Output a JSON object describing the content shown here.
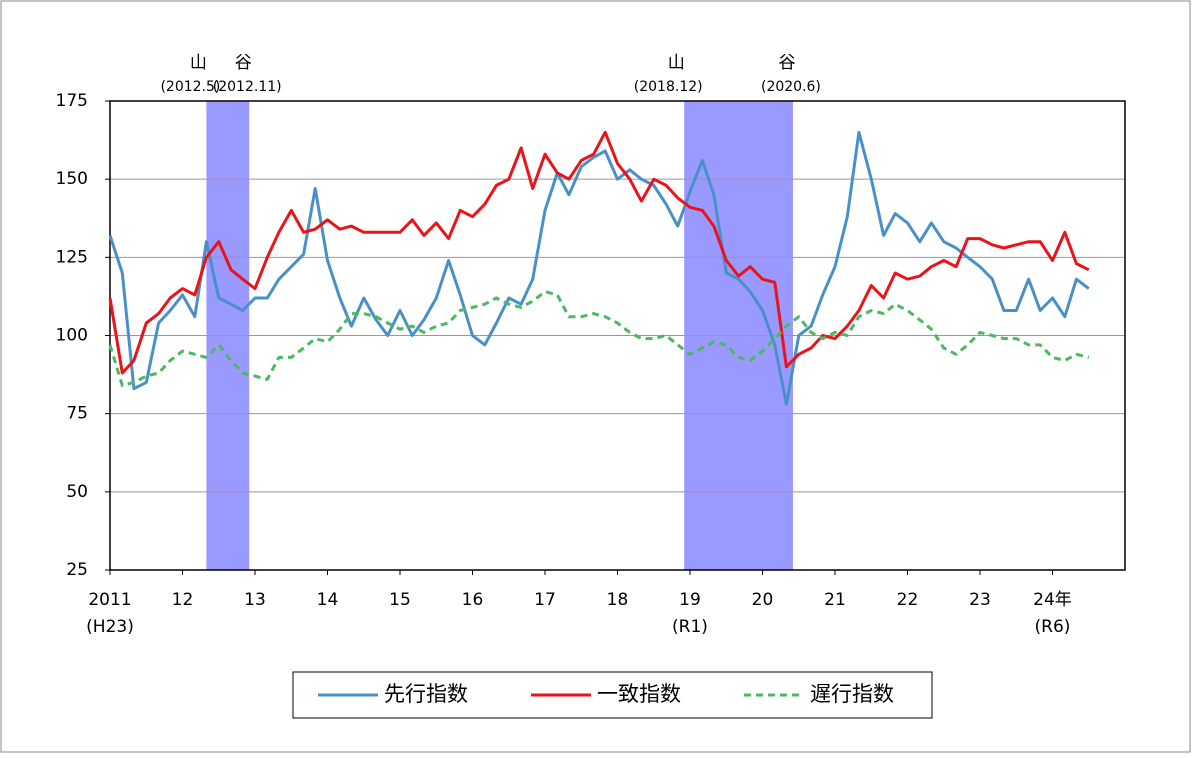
{
  "chart_data": {
    "type": "line",
    "x": [
      2011.0,
      2011.17,
      2011.33,
      2011.5,
      2011.67,
      2011.83,
      2012.0,
      2012.17,
      2012.33,
      2012.5,
      2012.67,
      2012.83,
      2013.0,
      2013.17,
      2013.33,
      2013.5,
      2013.67,
      2013.83,
      2014.0,
      2014.17,
      2014.33,
      2014.5,
      2014.67,
      2014.83,
      2015.0,
      2015.17,
      2015.33,
      2015.5,
      2015.67,
      2015.83,
      2016.0,
      2016.17,
      2016.33,
      2016.5,
      2016.67,
      2016.83,
      2017.0,
      2017.17,
      2017.33,
      2017.5,
      2017.67,
      2017.83,
      2018.0,
      2018.17,
      2018.33,
      2018.5,
      2018.67,
      2018.83,
      2019.0,
      2019.17,
      2019.33,
      2019.5,
      2019.67,
      2019.83,
      2020.0,
      2020.17,
      2020.33,
      2020.5,
      2020.67,
      2020.83,
      2021.0,
      2021.17,
      2021.33,
      2021.5,
      2021.67,
      2021.83,
      2022.0,
      2022.17,
      2022.33,
      2022.5,
      2022.67,
      2022.83,
      2023.0,
      2023.17,
      2023.33,
      2023.5,
      2023.67,
      2023.83,
      2024.0,
      2024.17,
      2024.33,
      2024.5
    ],
    "series": [
      {
        "name": "先行指数",
        "color": "#4a90c8",
        "dash": false,
        "values": [
          132,
          120,
          83,
          85,
          104,
          108,
          113,
          106,
          130,
          112,
          110,
          108,
          112,
          112,
          118,
          122,
          126,
          147,
          124,
          112,
          103,
          112,
          105,
          100,
          108,
          100,
          105,
          112,
          124,
          113,
          100,
          97,
          104,
          112,
          110,
          118,
          140,
          152,
          145,
          154,
          157,
          159,
          150,
          153,
          150,
          148,
          142,
          135,
          146,
          156,
          145,
          120,
          118,
          114,
          108,
          97,
          78,
          100,
          103,
          113,
          122,
          138,
          165,
          150,
          132,
          139,
          136,
          130,
          136,
          130,
          128,
          125,
          122,
          118,
          108,
          108,
          118,
          108,
          112,
          106,
          118,
          115
        ]
      },
      {
        "name": "一致指数",
        "color": "#e8141a",
        "dash": false,
        "values": [
          112,
          88,
          92,
          104,
          107,
          112,
          115,
          113,
          125,
          130,
          121,
          118,
          115,
          125,
          133,
          140,
          133,
          134,
          137,
          134,
          135,
          133,
          133,
          133,
          133,
          137,
          132,
          136,
          131,
          140,
          138,
          142,
          148,
          150,
          160,
          147,
          158,
          152,
          150,
          156,
          158,
          165,
          155,
          150,
          143,
          150,
          148,
          144,
          141,
          140,
          135,
          124,
          119,
          122,
          118,
          117,
          90,
          94,
          96,
          100,
          99,
          103,
          108,
          116,
          112,
          120,
          118,
          119,
          122,
          124,
          122,
          131,
          131,
          129,
          128,
          129,
          130,
          130,
          124,
          133,
          123,
          121
        ]
      },
      {
        "name": "遅行指数",
        "color": "#4cb860",
        "dash": true,
        "values": [
          97,
          84,
          85,
          87,
          88,
          92,
          95,
          94,
          93,
          97,
          92,
          88,
          87,
          86,
          93,
          93,
          96,
          99,
          98,
          102,
          107,
          107,
          106,
          104,
          102,
          103,
          101,
          103,
          104,
          108,
          109,
          110,
          112,
          110,
          109,
          111,
          114,
          113,
          106,
          106,
          107,
          106,
          104,
          101,
          99,
          99,
          100,
          97,
          94,
          96,
          98,
          97,
          93,
          92,
          95,
          99,
          103,
          106,
          101,
          99,
          101,
          100,
          106,
          108,
          107,
          110,
          108,
          105,
          102,
          96,
          94,
          97,
          101,
          100,
          99,
          99,
          97,
          97,
          93,
          92,
          94,
          93
        ]
      }
    ],
    "xlim": [
      2011,
      2025
    ],
    "xticks": [
      {
        "value": 2011,
        "label": "2011"
      },
      {
        "value": 2012,
        "label": "12"
      },
      {
        "value": 2013,
        "label": "13"
      },
      {
        "value": 2014,
        "label": "14"
      },
      {
        "value": 2015,
        "label": "15"
      },
      {
        "value": 2016,
        "label": "16"
      },
      {
        "value": 2017,
        "label": "17"
      },
      {
        "value": 2018,
        "label": "18"
      },
      {
        "value": 2019,
        "label": "19"
      },
      {
        "value": 2020,
        "label": "20"
      },
      {
        "value": 2021,
        "label": "21"
      },
      {
        "value": 2022,
        "label": "22"
      },
      {
        "value": 2023,
        "label": "23"
      },
      {
        "value": 2024,
        "label": "24年"
      }
    ],
    "era_labels": [
      {
        "value": 2011,
        "label": "(H23)"
      },
      {
        "value": 2019,
        "label": "(R1)"
      },
      {
        "value": 2024,
        "label": "(R6)"
      }
    ],
    "ylim": [
      25,
      175
    ],
    "yticks": [
      25,
      50,
      75,
      100,
      125,
      150,
      175
    ],
    "grid": true,
    "shaded": [
      {
        "start": 2012.33,
        "end": 2012.92,
        "color": "#9999ff",
        "peak_label": "山",
        "trough_label": "谷",
        "peak_date": "(2012.5)",
        "trough_date": "(2012.11)"
      },
      {
        "start": 2018.92,
        "end": 2020.42,
        "color": "#9999ff",
        "peak_label": "山",
        "trough_label": "谷",
        "peak_date": "(2018.12)",
        "trough_date": "(2020.6)"
      }
    ],
    "legend": "bottom"
  }
}
